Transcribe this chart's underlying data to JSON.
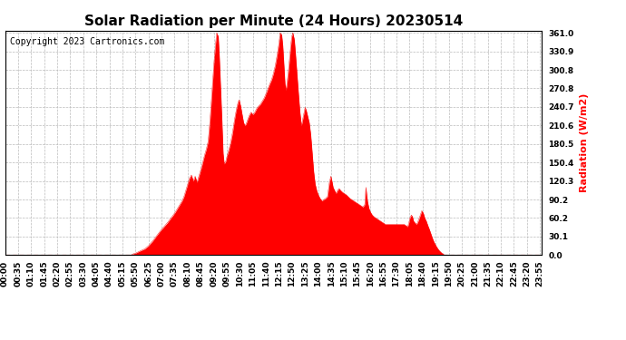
{
  "title": "Solar Radiation per Minute (24 Hours) 20230514",
  "copyright_text": "Copyright 2023 Cartronics.com",
  "ylabel": "Radiation (W/m2)",
  "ylabel_color": "#ff0000",
  "fill_color": "#ff0000",
  "line_color": "#ff0000",
  "bg_color": "#ffffff",
  "grid_color": "#bbbbbb",
  "yticks": [
    0.0,
    30.1,
    60.2,
    90.2,
    120.3,
    150.4,
    180.5,
    210.6,
    240.7,
    270.8,
    300.8,
    330.9,
    361.0
  ],
  "ymin": 0.0,
  "ymax": 361.0,
  "title_fontsize": 11,
  "copyright_fontsize": 7,
  "ylabel_fontsize": 8,
  "tick_fontsize": 6.5,
  "keypoints": [
    [
      0,
      0
    ],
    [
      339,
      0
    ],
    [
      340,
      1
    ],
    [
      350,
      3
    ],
    [
      360,
      6
    ],
    [
      375,
      10
    ],
    [
      385,
      15
    ],
    [
      395,
      22
    ],
    [
      405,
      30
    ],
    [
      415,
      38
    ],
    [
      425,
      45
    ],
    [
      435,
      52
    ],
    [
      445,
      60
    ],
    [
      455,
      68
    ],
    [
      465,
      78
    ],
    [
      475,
      88
    ],
    [
      480,
      95
    ],
    [
      485,
      105
    ],
    [
      490,
      115
    ],
    [
      495,
      125
    ],
    [
      500,
      130
    ],
    [
      505,
      120
    ],
    [
      510,
      128
    ],
    [
      515,
      118
    ],
    [
      520,
      128
    ],
    [
      525,
      138
    ],
    [
      530,
      150
    ],
    [
      535,
      162
    ],
    [
      540,
      172
    ],
    [
      545,
      185
    ],
    [
      550,
      220
    ],
    [
      555,
      265
    ],
    [
      560,
      310
    ],
    [
      565,
      345
    ],
    [
      568,
      361
    ],
    [
      572,
      355
    ],
    [
      575,
      320
    ],
    [
      578,
      275
    ],
    [
      582,
      215
    ],
    [
      585,
      165
    ],
    [
      588,
      148
    ],
    [
      592,
      152
    ],
    [
      596,
      162
    ],
    [
      600,
      170
    ],
    [
      605,
      182
    ],
    [
      610,
      198
    ],
    [
      615,
      218
    ],
    [
      620,
      235
    ],
    [
      625,
      248
    ],
    [
      628,
      252
    ],
    [
      632,
      242
    ],
    [
      636,
      228
    ],
    [
      640,
      215
    ],
    [
      644,
      210
    ],
    [
      648,
      215
    ],
    [
      652,
      222
    ],
    [
      656,
      228
    ],
    [
      660,
      232
    ],
    [
      665,
      228
    ],
    [
      670,
      232
    ],
    [
      675,
      238
    ],
    [
      680,
      242
    ],
    [
      685,
      245
    ],
    [
      690,
      250
    ],
    [
      695,
      255
    ],
    [
      700,
      262
    ],
    [
      705,
      270
    ],
    [
      710,
      278
    ],
    [
      715,
      285
    ],
    [
      720,
      295
    ],
    [
      725,
      308
    ],
    [
      730,
      325
    ],
    [
      735,
      345
    ],
    [
      738,
      361
    ],
    [
      742,
      358
    ],
    [
      745,
      340
    ],
    [
      748,
      310
    ],
    [
      751,
      278
    ],
    [
      754,
      268
    ],
    [
      757,
      282
    ],
    [
      760,
      298
    ],
    [
      763,
      318
    ],
    [
      766,
      338
    ],
    [
      769,
      355
    ],
    [
      772,
      361
    ],
    [
      776,
      350
    ],
    [
      779,
      328
    ],
    [
      783,
      295
    ],
    [
      787,
      262
    ],
    [
      791,
      232
    ],
    [
      795,
      210
    ],
    [
      800,
      225
    ],
    [
      805,
      240
    ],
    [
      808,
      235
    ],
    [
      812,
      225
    ],
    [
      816,
      215
    ],
    [
      820,
      195
    ],
    [
      824,
      165
    ],
    [
      828,
      135
    ],
    [
      832,
      115
    ],
    [
      836,
      105
    ],
    [
      840,
      98
    ],
    [
      845,
      92
    ],
    [
      850,
      88
    ],
    [
      855,
      90
    ],
    [
      860,
      92
    ],
    [
      865,
      95
    ],
    [
      870,
      118
    ],
    [
      874,
      128
    ],
    [
      877,
      120
    ],
    [
      880,
      110
    ],
    [
      884,
      105
    ],
    [
      888,
      100
    ],
    [
      892,
      105
    ],
    [
      896,
      108
    ],
    [
      900,
      105
    ],
    [
      905,
      102
    ],
    [
      910,
      100
    ],
    [
      915,
      98
    ],
    [
      920,
      95
    ],
    [
      925,
      92
    ],
    [
      930,
      90
    ],
    [
      935,
      88
    ],
    [
      940,
      86
    ],
    [
      945,
      84
    ],
    [
      950,
      82
    ],
    [
      955,
      80
    ],
    [
      960,
      78
    ],
    [
      965,
      82
    ],
    [
      968,
      110
    ],
    [
      972,
      88
    ],
    [
      976,
      76
    ],
    [
      980,
      70
    ],
    [
      985,
      65
    ],
    [
      990,
      62
    ],
    [
      995,
      60
    ],
    [
      1000,
      58
    ],
    [
      1005,
      56
    ],
    [
      1010,
      54
    ],
    [
      1015,
      52
    ],
    [
      1020,
      50
    ],
    [
      1025,
      50
    ],
    [
      1030,
      50
    ],
    [
      1035,
      50
    ],
    [
      1040,
      50
    ],
    [
      1045,
      50
    ],
    [
      1050,
      50
    ],
    [
      1055,
      50
    ],
    [
      1060,
      50
    ],
    [
      1065,
      50
    ],
    [
      1070,
      50
    ],
    [
      1075,
      48
    ],
    [
      1080,
      46
    ],
    [
      1083,
      52
    ],
    [
      1086,
      60
    ],
    [
      1090,
      65
    ],
    [
      1093,
      62
    ],
    [
      1096,
      55
    ],
    [
      1100,
      52
    ],
    [
      1103,
      50
    ],
    [
      1106,
      52
    ],
    [
      1110,
      58
    ],
    [
      1114,
      65
    ],
    [
      1118,
      72
    ],
    [
      1122,
      68
    ],
    [
      1126,
      60
    ],
    [
      1130,
      55
    ],
    [
      1134,
      48
    ],
    [
      1138,
      42
    ],
    [
      1142,
      35
    ],
    [
      1146,
      28
    ],
    [
      1150,
      22
    ],
    [
      1155,
      16
    ],
    [
      1160,
      11
    ],
    [
      1165,
      7
    ],
    [
      1170,
      4
    ],
    [
      1175,
      2
    ],
    [
      1178,
      0
    ],
    [
      1439,
      0
    ]
  ]
}
